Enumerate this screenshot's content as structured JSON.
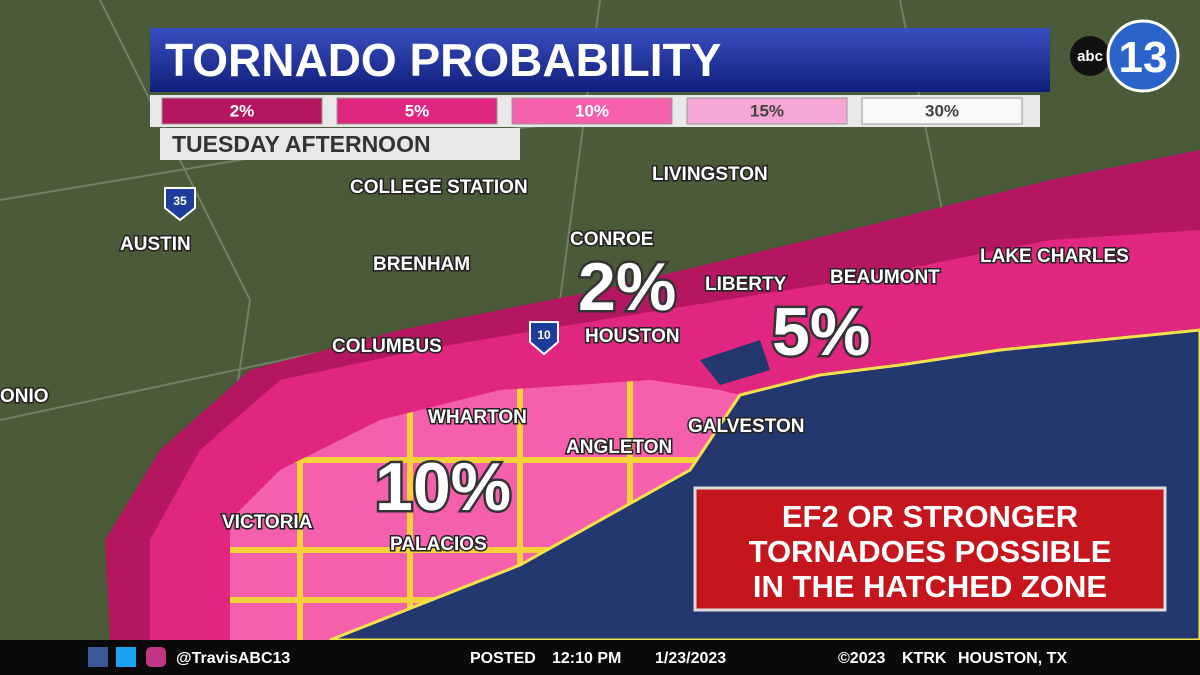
{
  "header": {
    "title": "TORNADO PROBABILITY",
    "subtitle": "TUESDAY AFTERNOON"
  },
  "legend": [
    "2%",
    "5%",
    "10%",
    "15%",
    "30%"
  ],
  "logo": {
    "network": "abc",
    "channel": "13"
  },
  "highways": [
    "35",
    "10"
  ],
  "cities": [
    "COLLEGE STATION",
    "LIVINGSTON",
    "AUSTIN",
    "CONROE",
    "BRENHAM",
    "LIBERTY",
    "BEAUMONT",
    "LAKE CHARLES",
    "COLUMBUS",
    "HOUSTON",
    "ONIO",
    "WHARTON",
    "GALVESTON",
    "ANGLETON",
    "VICTORIA",
    "PALACIOS"
  ],
  "zones": [
    "2%",
    "5%",
    "10%"
  ],
  "notice": [
    "EF2 OR STRONGER",
    "TORNADOES POSSIBLE",
    "IN THE HATCHED ZONE"
  ],
  "footer": {
    "handle": "@TravisABC13",
    "posted": "POSTED",
    "time": "12:10 PM",
    "date": "1/23/2023",
    "copyright": "©2023",
    "station": "KTRK",
    "location": "HOUSTON, TX"
  }
}
